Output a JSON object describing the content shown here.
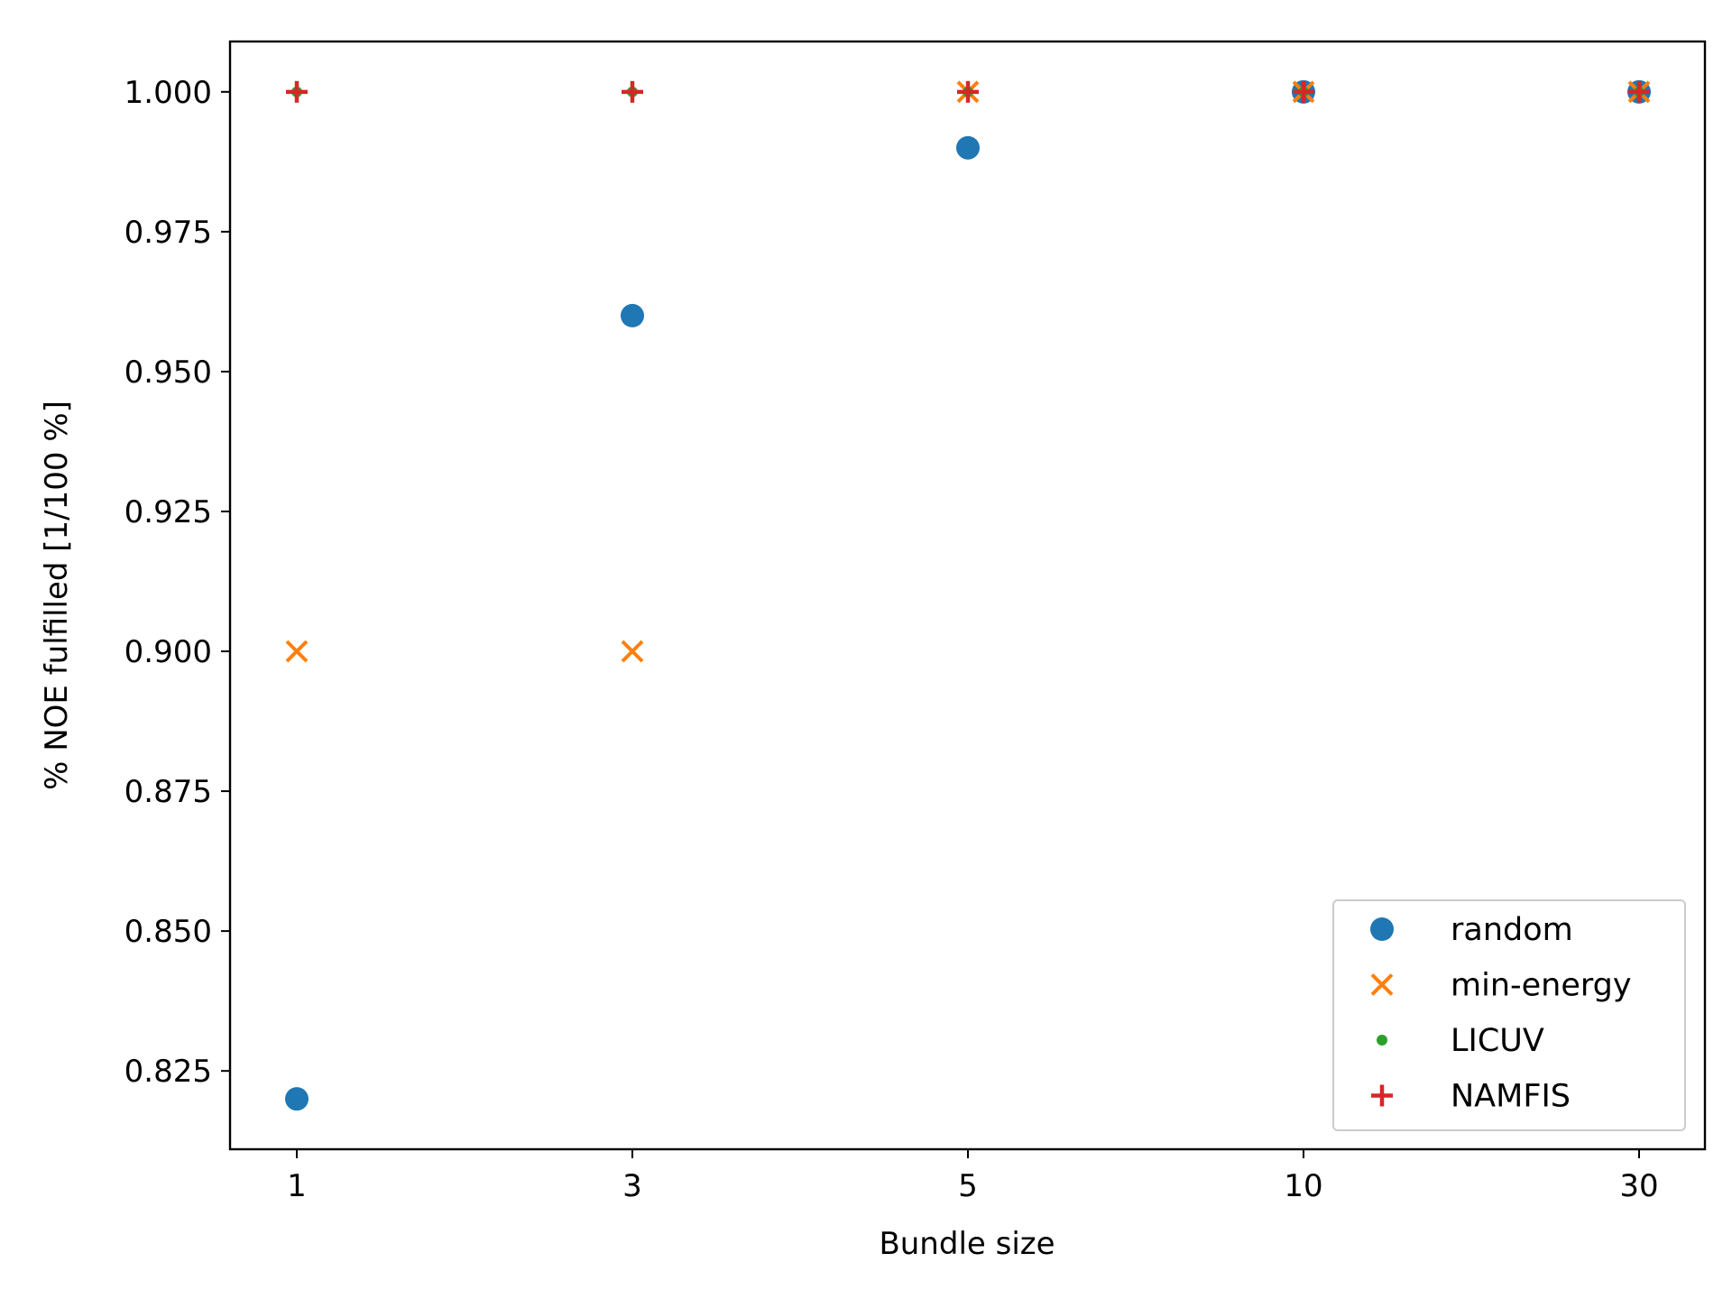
{
  "chart_data": {
    "type": "scatter",
    "categories": [
      "1",
      "3",
      "5",
      "10",
      "30"
    ],
    "xlabel": "Bundle size",
    "ylabel": "% NOE fulfilled [1/100 %]",
    "ylim": [
      0.811,
      1.009
    ],
    "yticks": [
      "0.825",
      "0.850",
      "0.875",
      "0.900",
      "0.925",
      "0.950",
      "0.975",
      "1.000"
    ],
    "grid": false,
    "legend_position": "lower right",
    "series": [
      {
        "name": "random",
        "marker": "circle",
        "color": "#1f77b4",
        "values": [
          0.82,
          0.96,
          0.99,
          1.0,
          1.0
        ]
      },
      {
        "name": "min-energy",
        "marker": "x",
        "color": "#ff7f0e",
        "values": [
          0.9,
          0.9,
          1.0,
          1.0,
          1.0
        ]
      },
      {
        "name": "LICUV",
        "marker": "small-dot",
        "color": "#2ca02c",
        "values": [
          1.0,
          1.0,
          1.0,
          1.0,
          1.0
        ]
      },
      {
        "name": "NAMFIS",
        "marker": "plus",
        "color": "#d62728",
        "values": [
          1.0,
          1.0,
          1.0,
          1.0,
          1.0
        ]
      }
    ]
  }
}
